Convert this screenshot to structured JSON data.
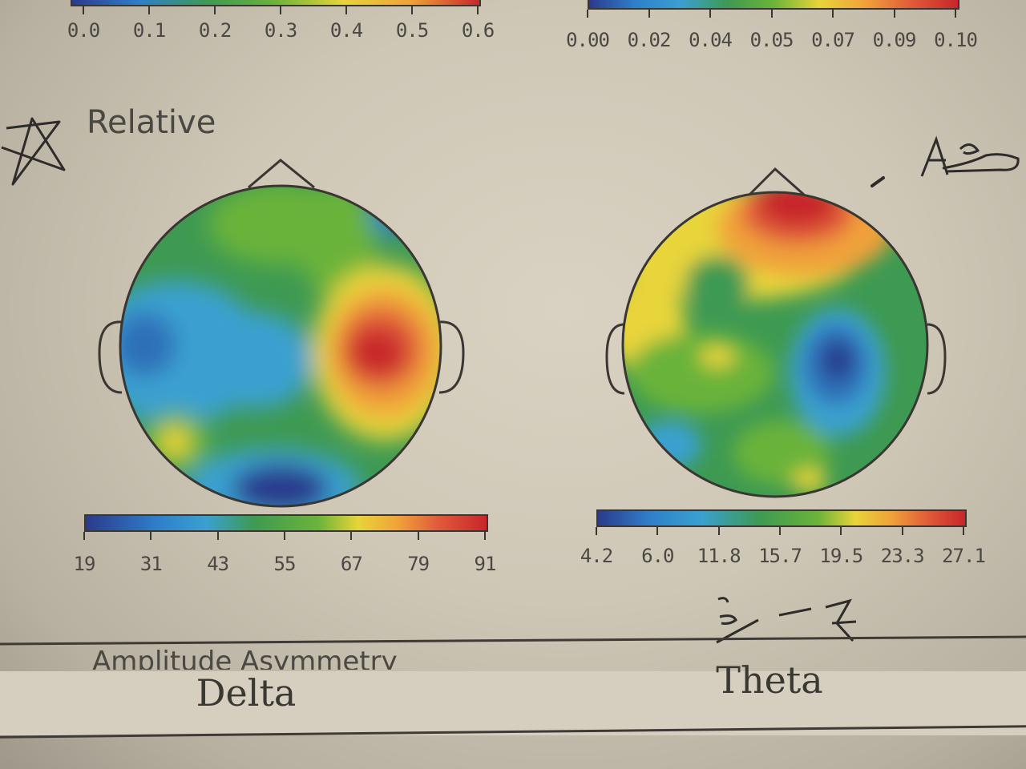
{
  "top_colorbars": {
    "left": {
      "tick_labels": [
        "0.0",
        "0.1",
        "0.2",
        "0.3",
        "0.4",
        "0.5",
        "0.6"
      ]
    },
    "right": {
      "tick_labels": [
        "0.00",
        "0.02",
        "0.04",
        "0.05",
        "0.07",
        "0.09",
        "0.10"
      ]
    }
  },
  "section": {
    "title": "Relative"
  },
  "maps": [
    {
      "band": "Delta",
      "colorbar_ticks": [
        "19",
        "31",
        "43",
        "55",
        "67",
        "79",
        "91"
      ]
    },
    {
      "band": "Theta",
      "colorbar_ticks": [
        "4.2",
        "6.0",
        "11.8",
        "15.7",
        "19.5",
        "23.3",
        "27.1"
      ]
    }
  ],
  "next_section": {
    "title": "Amplitude Asymmetry"
  },
  "colors": {
    "scale": [
      "#2b3a8c",
      "#2f7fc9",
      "#3aa0d0",
      "#3e9a52",
      "#6bb33a",
      "#e8d43a",
      "#f0a13a",
      "#e05a3a",
      "#c8262a"
    ],
    "paper": "#d3ccbc",
    "ink": "#3a3733"
  }
}
